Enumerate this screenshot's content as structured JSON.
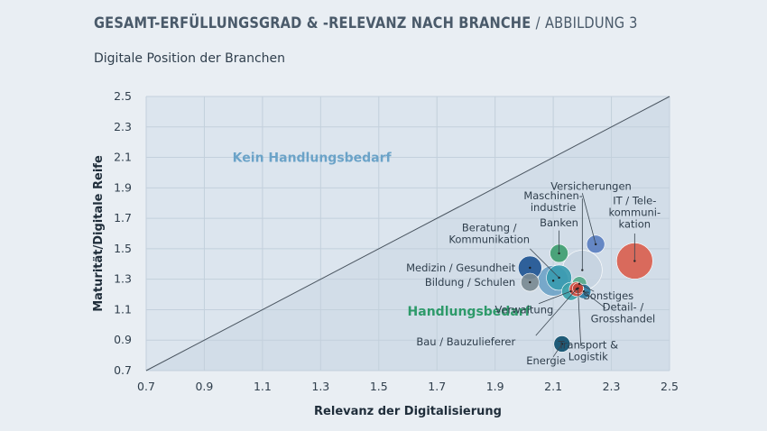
{
  "header": {
    "title": "GESAMT-ERFÜLLUNGSGRAD & -RELEVANZ NACH BRANCHE",
    "separator": "/",
    "figure": "ABBILDUNG 3",
    "subtitle": "Digitale Position der Branchen"
  },
  "colors": {
    "background": "#e9eef3",
    "plot_bg": "#dce5ee",
    "triangle": "#d2dde8",
    "grid": "#c3d0dc",
    "kein": "#6ba3c8",
    "handlung": "#2e9a6a"
  },
  "chart_data": {
    "type": "scatter",
    "title": "Digitale Position der Branchen",
    "xlabel": "Relevanz der Digitalisierung",
    "ylabel": "Maturität/Digitale Reife",
    "xlim": [
      0.7,
      2.5
    ],
    "ylim": [
      0.7,
      2.5
    ],
    "xticks": [
      "0.7",
      "0.9",
      "1.1",
      "1.3",
      "1.5",
      "1.7",
      "1.9",
      "2.1",
      "2.3",
      "2.5"
    ],
    "yticks": [
      "0.7",
      "0.9",
      "1.1",
      "1.3",
      "1.5",
      "1.7",
      "1.9",
      "2.1",
      "2.3",
      "2.5"
    ],
    "grid": true,
    "diagonal": {
      "from": [
        0.7,
        0.7
      ],
      "to": [
        2.5,
        2.5
      ]
    },
    "regions": [
      {
        "label": "Kein Handlungsbedarf",
        "x": 1.27,
        "y": 2.1,
        "color": "#6ba3c8"
      },
      {
        "label": "Handlungsbedarf",
        "x": 1.81,
        "y": 1.09,
        "color": "#2e9a6a"
      }
    ],
    "points": [
      {
        "name": "Versicherungen",
        "lines": [
          "Versicherungen"
        ],
        "x": 2.246,
        "y": 1.53,
        "size": 10,
        "color": "#5b7fc0",
        "text": [
          2.23,
          1.91
        ],
        "anchor": "middle",
        "leader": [
          [
            2.2,
            1.865
          ],
          [
            2.246,
            1.53
          ]
        ]
      },
      {
        "name": "Maschinenindustrie",
        "lines": [
          "Maschinen-",
          "industrie"
        ],
        "x": 2.2,
        "y": 1.36,
        "size": 22,
        "color": "#c5d3df",
        "text": [
          2.1,
          1.81
        ],
        "anchor": "middle",
        "leader": [
          [
            2.2,
            1.83
          ],
          [
            2.2,
            1.36
          ]
        ]
      },
      {
        "name": "IT / Telekommunikation",
        "lines": [
          "IT / Tele-",
          "kommuni-",
          "kation"
        ],
        "x": 2.38,
        "y": 1.42,
        "size": 20,
        "color": "#d9604f",
        "text": [
          2.38,
          1.74
        ],
        "anchor": "middle",
        "leader": [
          [
            2.38,
            1.6
          ],
          [
            2.38,
            1.42
          ]
        ]
      },
      {
        "name": "Banken",
        "lines": [
          "Banken"
        ],
        "x": 2.12,
        "y": 1.47,
        "size": 10,
        "color": "#3f9d70",
        "text": [
          2.12,
          1.67
        ],
        "anchor": "middle",
        "leader": [
          [
            2.12,
            1.62
          ],
          [
            2.12,
            1.47
          ]
        ]
      },
      {
        "name": "Beratung / Kommunikation",
        "lines": [
          "Beratung /",
          "Kommunikation"
        ],
        "x": 2.12,
        "y": 1.31,
        "size": 14,
        "color": "#3a9bb0",
        "text": [
          1.88,
          1.6
        ],
        "anchor": "middle",
        "leader": [
          [
            2.02,
            1.5
          ],
          [
            2.12,
            1.31
          ]
        ]
      },
      {
        "name": "Medizin / Gesundheit",
        "lines": [
          "Medizin / Gesundheit"
        ],
        "x": 2.02,
        "y": 1.375,
        "size": 13,
        "color": "#1f5592",
        "text": [
          1.97,
          1.375
        ],
        "anchor": "end",
        "leader": null
      },
      {
        "name": "Bildung / Schulen",
        "lines": [
          "Bildung / Schulen"
        ],
        "x": 2.02,
        "y": 1.28,
        "size": 10,
        "color": "#7a8a92",
        "text": [
          1.97,
          1.28
        ],
        "anchor": "end",
        "leader": null
      },
      {
        "name": "Bildung / Schulen (groß)",
        "lines": [],
        "x": 2.1,
        "y": 1.29,
        "size": 17,
        "color": "#6fa3c7",
        "text": null,
        "anchor": "middle",
        "leader": null
      },
      {
        "name": "Verwaltung",
        "lines": [
          "Verwaltung"
        ],
        "x": 2.16,
        "y": 1.22,
        "size": 10,
        "color": "#3aa0a8",
        "text": [
          2.0,
          1.1
        ],
        "anchor": "middle",
        "leader": [
          [
            2.05,
            1.14
          ],
          [
            2.16,
            1.22
          ]
        ]
      },
      {
        "name": "Sonstiges",
        "lines": [
          "Sonstiges"
        ],
        "x": 2.19,
        "y": 1.27,
        "size": 8,
        "color": "#55a98a",
        "text": [
          2.29,
          1.19
        ],
        "anchor": "middle",
        "leader": [
          [
            2.24,
            1.22
          ],
          [
            2.19,
            1.27
          ]
        ]
      },
      {
        "name": "Detail- / Grosshandel",
        "lines": [
          "Detail- /",
          "Grosshandel"
        ],
        "x": 2.205,
        "y": 1.22,
        "size": 8,
        "color": "#2a7aa0",
        "text": [
          2.34,
          1.08
        ],
        "anchor": "middle",
        "leader": [
          [
            2.28,
            1.11
          ],
          [
            2.205,
            1.22
          ]
        ]
      },
      {
        "name": "Bau / Bauzulieferer",
        "lines": [
          "Bau / Bauzulieferer"
        ],
        "x": 2.18,
        "y": 1.235,
        "size": 8,
        "color": "#d94b3f",
        "text": [
          1.97,
          0.89
        ],
        "anchor": "end",
        "leader": [
          [
            2.04,
            0.93
          ],
          [
            2.18,
            1.235
          ]
        ]
      },
      {
        "name": "Transport & Logistik",
        "lines": [
          "Transport &",
          "Logistik"
        ],
        "x": 2.185,
        "y": 1.24,
        "size": 6,
        "color": "#c0453a",
        "text": [
          2.22,
          0.83
        ],
        "anchor": "middle",
        "leader": [
          [
            2.195,
            0.86
          ],
          [
            2.185,
            1.24
          ]
        ]
      },
      {
        "name": "Energie",
        "lines": [
          "Energie"
        ],
        "x": 2.13,
        "y": 0.875,
        "size": 9,
        "color": "#0f4f6e",
        "text": [
          2.075,
          0.765
        ],
        "anchor": "middle",
        "leader": [
          [
            2.1,
            0.79
          ],
          [
            2.13,
            0.875
          ]
        ]
      }
    ]
  }
}
